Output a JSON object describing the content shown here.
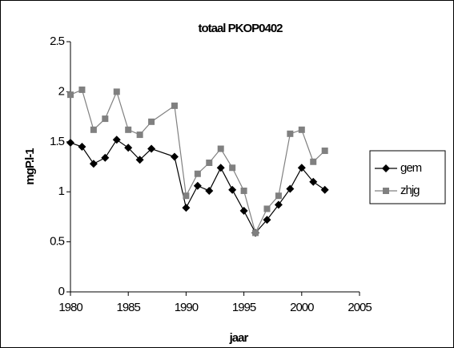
{
  "chart_data": {
    "type": "line",
    "title": "totaal PKOP0402",
    "x_label": "jaar",
    "y_label": "mgP.l-1",
    "x": [
      1980,
      1981,
      1982,
      1983,
      1984,
      1985,
      1986,
      1987,
      1989,
      1990,
      1991,
      1992,
      1993,
      1994,
      1995,
      1996,
      1997,
      1998,
      1999,
      2000,
      2001,
      2002
    ],
    "series": [
      {
        "name": "gem",
        "color": "#000000",
        "marker": "diamond",
        "values": [
          1.49,
          1.45,
          1.28,
          1.34,
          1.52,
          1.44,
          1.32,
          1.43,
          1.35,
          0.84,
          1.06,
          1.01,
          1.24,
          1.02,
          0.81,
          0.59,
          0.72,
          0.87,
          1.03,
          1.24,
          1.1,
          1.02
        ]
      },
      {
        "name": "zhjg",
        "color": "#808080",
        "marker": "square",
        "values": [
          1.97,
          2.02,
          1.62,
          1.73,
          2.0,
          1.62,
          1.57,
          1.7,
          1.86,
          0.96,
          1.18,
          1.29,
          1.43,
          1.24,
          1.01,
          0.59,
          0.83,
          0.96,
          1.58,
          1.62,
          1.3,
          1.41
        ]
      }
    ],
    "xlim": [
      1980,
      2005
    ],
    "xticks": [
      1980,
      1985,
      1990,
      1995,
      2000,
      2005
    ],
    "ylim": [
      0,
      2.5
    ],
    "yticks": [
      0,
      0.5,
      1,
      1.5,
      2,
      2.5
    ],
    "grid": false,
    "legend": "right"
  }
}
